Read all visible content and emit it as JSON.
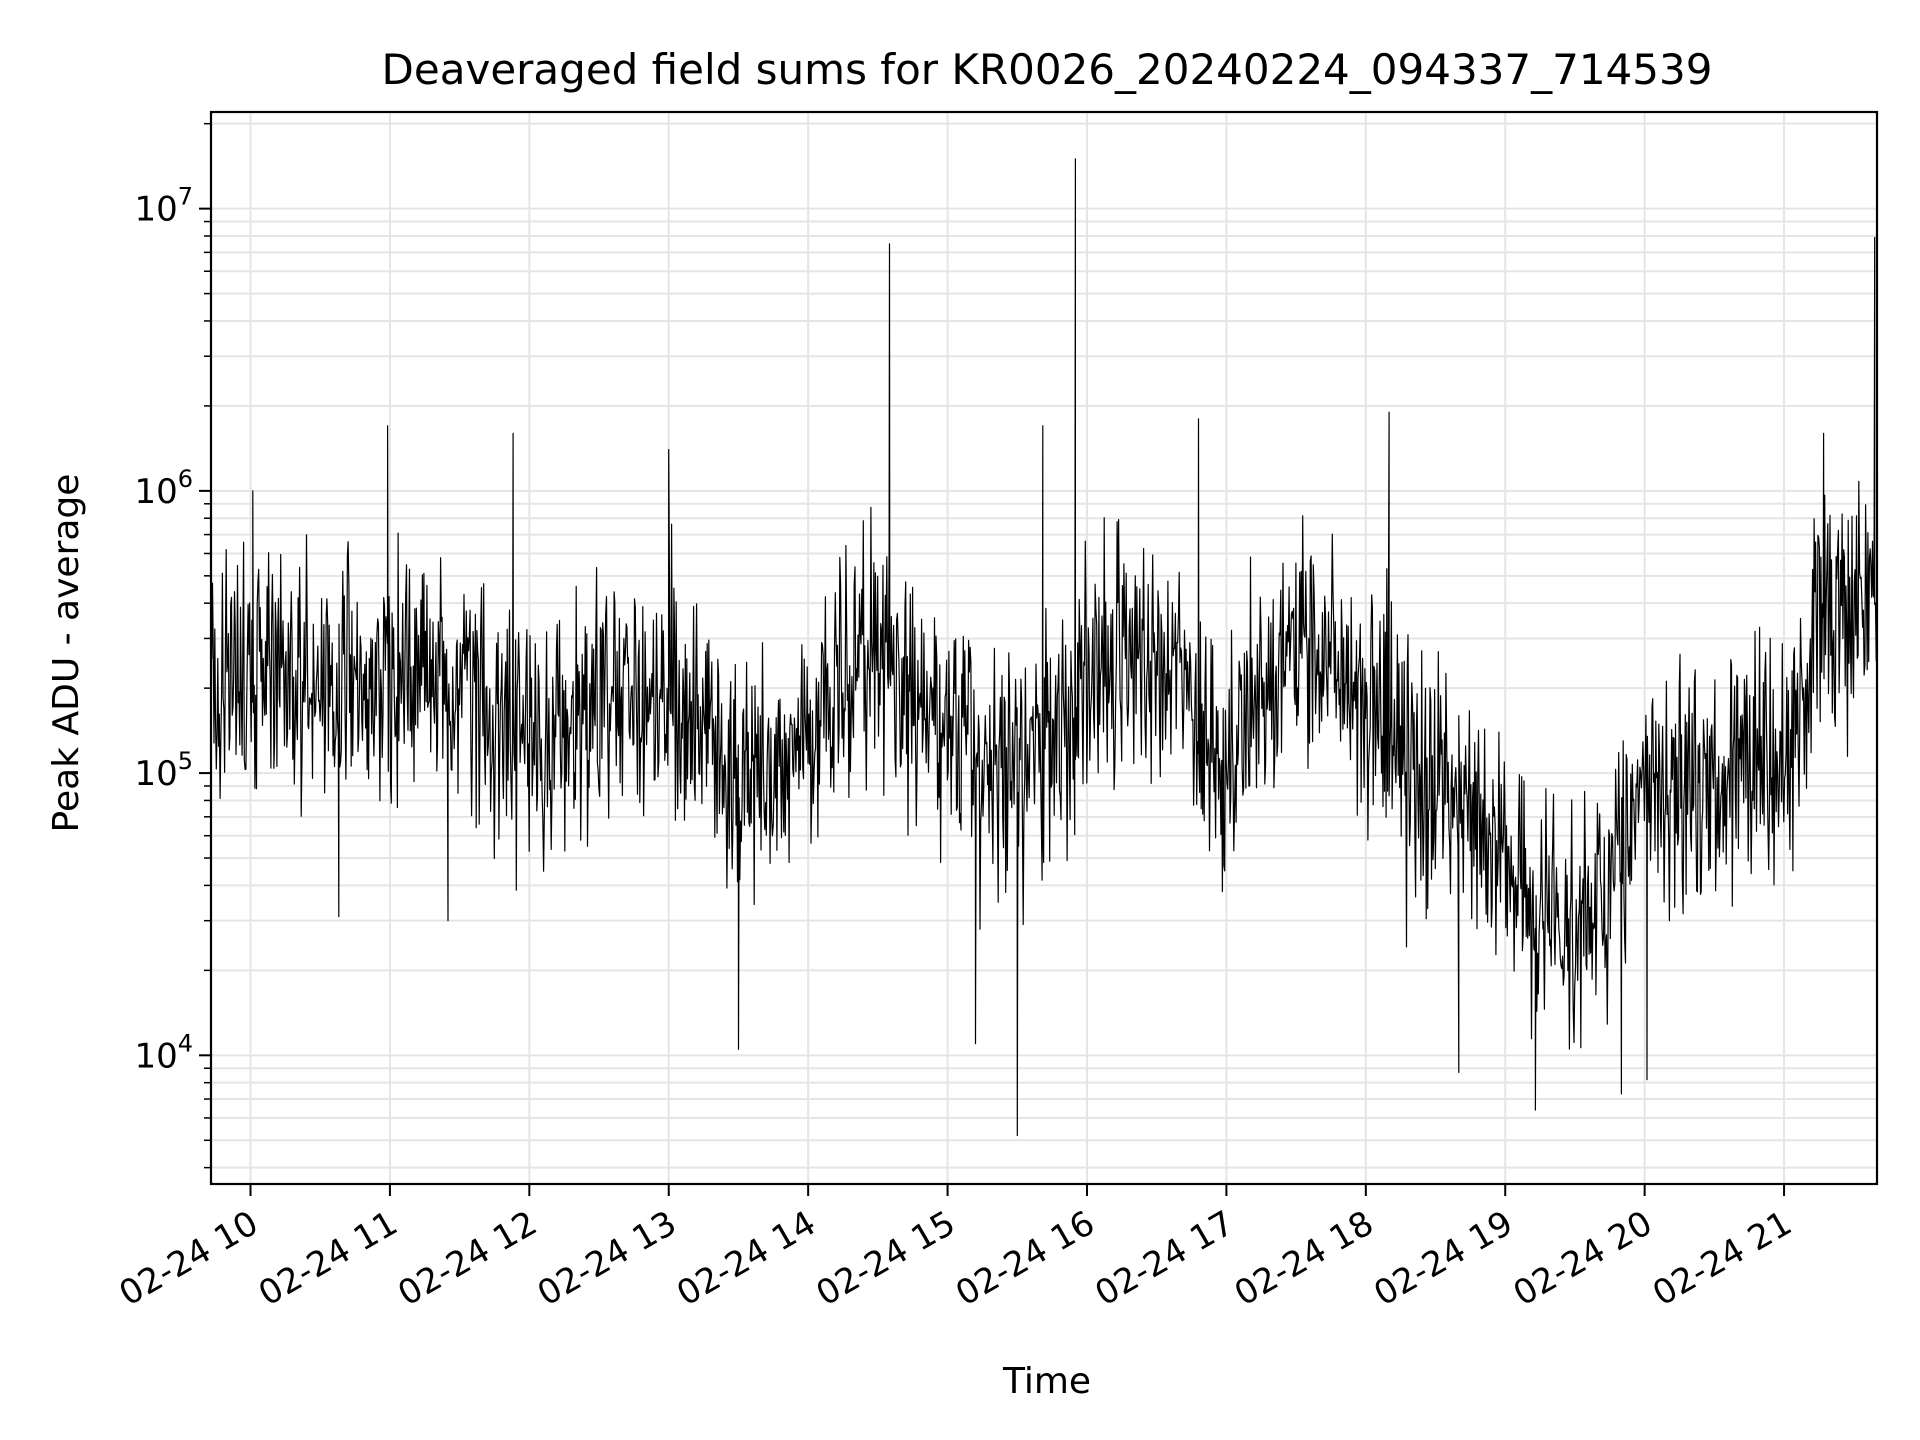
{
  "chart_data": {
    "type": "line",
    "title": "Deaveraged field sums for KR0026_20240224_094337_714539",
    "xlabel": "Time",
    "ylabel": "Peak ADU - average",
    "yscale": "log",
    "ylim": [
      3500,
      22000000
    ],
    "xlim": [
      "2024-02-24 09:43",
      "2024-02-24 21:40"
    ],
    "grid": true,
    "grid_color": "#e5e5e5",
    "line_color": "#000000",
    "x_ticks": [
      {
        "t": "2024-02-24 10:00",
        "label": "02-24 10"
      },
      {
        "t": "2024-02-24 11:00",
        "label": "02-24 11"
      },
      {
        "t": "2024-02-24 12:00",
        "label": "02-24 12"
      },
      {
        "t": "2024-02-24 13:00",
        "label": "02-24 13"
      },
      {
        "t": "2024-02-24 14:00",
        "label": "02-24 14"
      },
      {
        "t": "2024-02-24 15:00",
        "label": "02-24 15"
      },
      {
        "t": "2024-02-24 16:00",
        "label": "02-24 16"
      },
      {
        "t": "2024-02-24 17:00",
        "label": "02-24 17"
      },
      {
        "t": "2024-02-24 18:00",
        "label": "02-24 18"
      },
      {
        "t": "2024-02-24 19:00",
        "label": "02-24 19"
      },
      {
        "t": "2024-02-24 20:00",
        "label": "02-24 20"
      },
      {
        "t": "2024-02-24 21:00",
        "label": "02-24 21"
      }
    ],
    "y_ticks": [
      {
        "value": 10000,
        "base": "10",
        "exp": "4"
      },
      {
        "value": 100000,
        "base": "10",
        "exp": "5"
      },
      {
        "value": 1000000,
        "base": "10",
        "exp": "6"
      },
      {
        "value": 10000000,
        "base": "10",
        "exp": "7"
      }
    ],
    "baseline": [
      [
        "2024-02-24 09:43",
        250000
      ],
      [
        "2024-02-24 10:30",
        200000
      ],
      [
        "2024-02-24 11:00",
        220000
      ],
      [
        "2024-02-24 11:30",
        190000
      ],
      [
        "2024-02-24 12:00",
        130000
      ],
      [
        "2024-02-24 12:30",
        200000
      ],
      [
        "2024-02-24 13:15",
        160000
      ],
      [
        "2024-02-24 13:30",
        80000
      ],
      [
        "2024-02-24 14:00",
        150000
      ],
      [
        "2024-02-24 14:30",
        250000
      ],
      [
        "2024-02-24 15:00",
        130000
      ],
      [
        "2024-02-24 15:30",
        100000
      ],
      [
        "2024-02-24 16:00",
        200000
      ],
      [
        "2024-02-24 16:30",
        300000
      ],
      [
        "2024-02-24 17:00",
        100000
      ],
      [
        "2024-02-24 17:30",
        300000
      ],
      [
        "2024-02-24 18:00",
        200000
      ],
      [
        "2024-02-24 18:30",
        80000
      ],
      [
        "2024-02-24 19:00",
        50000
      ],
      [
        "2024-02-24 19:15",
        25000
      ],
      [
        "2024-02-24 19:45",
        40000
      ],
      [
        "2024-02-24 20:00",
        90000
      ],
      [
        "2024-02-24 20:30",
        100000
      ],
      [
        "2024-02-24 21:00",
        120000
      ],
      [
        "2024-02-24 21:20",
        400000
      ],
      [
        "2024-02-24 21:40",
        500000
      ]
    ],
    "spikes": [
      [
        "2024-02-24 10:01",
        1000000
      ],
      [
        "2024-02-24 10:38",
        31000
      ],
      [
        "2024-02-24 10:59",
        1700000
      ],
      [
        "2024-02-24 11:25",
        30000
      ],
      [
        "2024-02-24 11:53",
        1600000
      ],
      [
        "2024-02-24 13:00",
        1400000
      ],
      [
        "2024-02-24 13:30",
        10500
      ],
      [
        "2024-02-24 14:35",
        7500000
      ],
      [
        "2024-02-24 15:12",
        11000
      ],
      [
        "2024-02-24 15:30",
        5200
      ],
      [
        "2024-02-24 15:41",
        1700000
      ],
      [
        "2024-02-24 15:55",
        15000000
      ],
      [
        "2024-02-24 16:48",
        1800000
      ],
      [
        "2024-02-24 18:10",
        1900000
      ],
      [
        "2024-02-24 18:40",
        8700
      ],
      [
        "2024-02-24 19:13",
        6400
      ],
      [
        "2024-02-24 19:50",
        7300
      ],
      [
        "2024-02-24 20:01",
        8200
      ],
      [
        "2024-02-24 21:17",
        1600000
      ],
      [
        "2024-02-24 21:39",
        7900000
      ]
    ]
  }
}
